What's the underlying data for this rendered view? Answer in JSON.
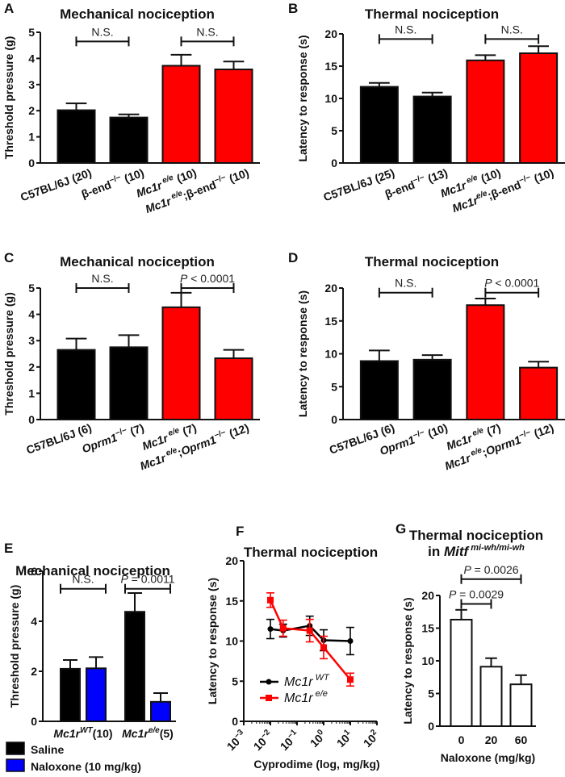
{
  "figure": {
    "colors": {
      "black": "#000000",
      "red": "#ff0000",
      "blue": "#0000ff",
      "white": "#ffffff",
      "axis": "#111111"
    }
  },
  "chart_data": [
    {
      "id": "A",
      "letter": "A",
      "type": "bar",
      "title": "Mechanical nociception",
      "ylabel": "Threshold pressure (g)",
      "xlabel": "",
      "ylim": [
        0,
        5
      ],
      "yticks": [
        0,
        1,
        2,
        3,
        4,
        5
      ],
      "categories": [
        {
          "parts": [
            {
              "t": "C57BL/6J (20)"
            }
          ]
        },
        {
          "parts": [
            {
              "t": "β-end"
            },
            {
              "t": "−/−",
              "sup": true
            },
            {
              "t": " (10)"
            }
          ]
        },
        {
          "parts": [
            {
              "t": "Mc1r",
              "it": true
            },
            {
              "t": " e/e",
              "sup": true,
              "it": true
            },
            {
              "t": " (10)"
            }
          ]
        },
        {
          "parts": [
            {
              "t": "Mc1r",
              "it": true
            },
            {
              "t": " e/e",
              "sup": true,
              "it": true
            },
            {
              "t": ";β-end"
            },
            {
              "t": "−/−",
              "sup": true
            },
            {
              "t": " (10)"
            }
          ]
        }
      ],
      "values": [
        2.02,
        1.74,
        3.72,
        3.58
      ],
      "errors": [
        0.26,
        0.12,
        0.42,
        0.3
      ],
      "colors": [
        "black",
        "black",
        "red",
        "red"
      ],
      "brackets": [
        {
          "from": 0,
          "to": 1,
          "y": 4.65,
          "label": "N.S."
        },
        {
          "from": 2,
          "to": 3,
          "y": 4.65,
          "label": "N.S."
        }
      ]
    },
    {
      "id": "B",
      "letter": "B",
      "type": "bar",
      "title": "Thermal nociception",
      "ylabel": "Latency to response (s)",
      "xlabel": "",
      "ylim": [
        0,
        20
      ],
      "yticks": [
        0,
        5,
        10,
        15,
        20
      ],
      "categories": [
        {
          "parts": [
            {
              "t": "C57BL/6J (25)"
            }
          ]
        },
        {
          "parts": [
            {
              "t": "β-end"
            },
            {
              "t": "−/−",
              "sup": true
            },
            {
              "t": " (13)"
            }
          ]
        },
        {
          "parts": [
            {
              "t": "Mc1r",
              "it": true
            },
            {
              "t": " e/e",
              "sup": true,
              "it": true
            },
            {
              "t": " (10)"
            }
          ]
        },
        {
          "parts": [
            {
              "t": "Mc1r",
              "it": true
            },
            {
              "t": "e/e",
              "sup": true,
              "it": true
            },
            {
              "t": ";β-end"
            },
            {
              "t": "−/−",
              "sup": true
            },
            {
              "t": " (10)"
            }
          ]
        }
      ],
      "values": [
        11.8,
        10.3,
        15.9,
        17.0
      ],
      "errors": [
        0.6,
        0.6,
        0.8,
        1.1
      ],
      "colors": [
        "black",
        "black",
        "red",
        "red"
      ],
      "brackets": [
        {
          "from": 0,
          "to": 1,
          "y": 19.2,
          "label": "N.S."
        },
        {
          "from": 2,
          "to": 3,
          "y": 19.2,
          "label": "N.S."
        }
      ]
    },
    {
      "id": "C",
      "letter": "C",
      "type": "bar",
      "title": "Mechanical nociception",
      "ylabel": "Threshold pressure (g)",
      "xlabel": "",
      "ylim": [
        0,
        5
      ],
      "yticks": [
        0,
        1,
        2,
        3,
        4,
        5
      ],
      "categories": [
        {
          "parts": [
            {
              "t": "C57BL/6J (6)"
            }
          ]
        },
        {
          "parts": [
            {
              "t": "Oprm1",
              "it": true
            },
            {
              "t": "−/−",
              "sup": true
            },
            {
              "t": "  (7)"
            }
          ]
        },
        {
          "parts": [
            {
              "t": "Mc1r",
              "it": true
            },
            {
              "t": " e/e",
              "sup": true,
              "it": true
            },
            {
              "t": " (7)"
            }
          ]
        },
        {
          "parts": [
            {
              "t": "Mc1r",
              "it": true
            },
            {
              "t": " e/e",
              "sup": true,
              "it": true
            },
            {
              "t": ";"
            },
            {
              "t": "Oprm1",
              "it": true
            },
            {
              "t": "−/−",
              "sup": true
            },
            {
              "t": "  (12)"
            }
          ]
        }
      ],
      "values": [
        2.65,
        2.75,
        4.27,
        2.33
      ],
      "errors": [
        0.43,
        0.46,
        0.55,
        0.32
      ],
      "colors": [
        "black",
        "black",
        "red",
        "red"
      ],
      "brackets": [
        {
          "from": 0,
          "to": 1,
          "y": 5.0,
          "label": "N.S."
        },
        {
          "from": 2,
          "to": 3,
          "y": 5.0,
          "label": "P < 0.0001",
          "italic_prefix": "P"
        }
      ]
    },
    {
      "id": "D",
      "letter": "D",
      "type": "bar",
      "title": "Thermal nociception",
      "ylabel": "Latency to response (s)",
      "xlabel": "",
      "ylim": [
        0,
        20
      ],
      "yticks": [
        0,
        5,
        10,
        15,
        20
      ],
      "categories": [
        {
          "parts": [
            {
              "t": "C57BL/6J (6)"
            }
          ]
        },
        {
          "parts": [
            {
              "t": "Oprm1",
              "it": true
            },
            {
              "t": "−/−",
              "sup": true
            },
            {
              "t": "  (10)"
            }
          ]
        },
        {
          "parts": [
            {
              "t": "Mc1r",
              "it": true
            },
            {
              "t": " e/e",
              "sup": true,
              "it": true
            },
            {
              "t": " (7)"
            }
          ]
        },
        {
          "parts": [
            {
              "t": "Mc1r",
              "it": true
            },
            {
              "t": " e/e",
              "sup": true,
              "it": true
            },
            {
              "t": ";"
            },
            {
              "t": "Oprm1",
              "it": true
            },
            {
              "t": "−/−",
              "sup": true
            },
            {
              "t": "  (12)"
            }
          ]
        }
      ],
      "values": [
        8.9,
        9.1,
        17.4,
        7.9
      ],
      "errors": [
        1.6,
        0.7,
        1.0,
        0.9
      ],
      "colors": [
        "black",
        "black",
        "red",
        "red"
      ],
      "brackets": [
        {
          "from": 0,
          "to": 1,
          "y": 19.3,
          "label": "N.S."
        },
        {
          "from": 2,
          "to": 3,
          "y": 19.3,
          "label": "P < 0.0001",
          "italic_prefix": "P"
        }
      ]
    },
    {
      "id": "E",
      "letter": "E",
      "type": "bar",
      "title": "Mechanical nociception",
      "ylabel": "Threshold pressure (g)",
      "xlabel": "",
      "ylim": [
        0,
        6
      ],
      "yticks": [
        0,
        2,
        4,
        6
      ],
      "groups": [
        {
          "parts": [
            {
              "t": "Mc1r",
              "it": true
            },
            {
              "t": "WT",
              "sup": true,
              "it": true
            },
            {
              "t": "(10)"
            }
          ]
        },
        {
          "parts": [
            {
              "t": "Mc1r",
              "it": true
            },
            {
              "t": "e/e",
              "sup": true,
              "it": true
            },
            {
              "t": "(5)"
            }
          ]
        }
      ],
      "series": [
        {
          "name": "Saline",
          "color": "black",
          "values": [
            2.1,
            4.38
          ],
          "errors": [
            0.35,
            0.75
          ]
        },
        {
          "name": "Naloxone (10 mg/kg)",
          "color": "blue",
          "values": [
            2.12,
            0.78
          ],
          "errors": [
            0.45,
            0.35
          ]
        }
      ],
      "legend": [
        "Saline",
        "Naloxone (10 mg/kg)"
      ],
      "legend_position": "bottom",
      "brackets": [
        {
          "group": 0,
          "y": 5.3,
          "label": "N.S."
        },
        {
          "group": 1,
          "y": 5.3,
          "label": "P = 0.0011",
          "italic_prefix": "P"
        }
      ]
    },
    {
      "id": "F",
      "letter": "F",
      "type": "line",
      "title": "Thermal nociception",
      "ylabel": "Latency to response (s)",
      "xlabel": "Cyprodime (log, mg/kg)",
      "xscale": "log",
      "xlim_exp": [
        -3,
        2
      ],
      "xticks_exp": [
        -3,
        -2,
        -1,
        0,
        1,
        2
      ],
      "ylim": [
        0,
        20
      ],
      "yticks": [
        0,
        5,
        10,
        15,
        20
      ],
      "series": [
        {
          "name": "Mc1r WT",
          "label_base": "Mc1r",
          "label_sup": "WT",
          "color": "black",
          "marker": "circle",
          "x": [
            0.01,
            0.03,
            0.3,
            1,
            10
          ],
          "y": [
            11.5,
            11.3,
            11.9,
            10.1,
            10.0
          ],
          "errors": [
            1.2,
            0.8,
            1.2,
            1.3,
            1.7
          ]
        },
        {
          "name": "Mc1r e/e",
          "label_base": "Mc1r",
          "label_sup": "e/e",
          "color": "red",
          "marker": "square",
          "x": [
            0.01,
            0.03,
            0.3,
            1,
            10
          ],
          "y": [
            15.1,
            11.6,
            11.3,
            9.2,
            5.2
          ],
          "errors": [
            0.9,
            1.0,
            1.4,
            1.4,
            0.8
          ]
        }
      ],
      "legend_position": "bottom-left"
    },
    {
      "id": "G",
      "letter": "G",
      "type": "bar",
      "title": "Thermal nociception",
      "title2_prefix": "in ",
      "title2_gene": "Mitf",
      "title2_sup": "mi-wh/mi-wh",
      "ylabel": "Latency to response (s)",
      "xlabel": "Naloxone (mg/kg)",
      "ylim": [
        0,
        20
      ],
      "yticks": [
        0,
        5,
        10,
        15,
        20
      ],
      "categories": [
        {
          "parts": [
            {
              "t": "0"
            }
          ]
        },
        {
          "parts": [
            {
              "t": "20"
            }
          ]
        },
        {
          "parts": [
            {
              "t": "60"
            }
          ]
        }
      ],
      "values": [
        16.3,
        9.1,
        6.4
      ],
      "errors": [
        1.5,
        1.3,
        1.4
      ],
      "colors": [
        "white",
        "white",
        "white"
      ],
      "brackets": [
        {
          "from": 0,
          "to": 2,
          "y": 22.5,
          "label": "P = 0.0026",
          "italic_prefix": "P"
        },
        {
          "from": 0,
          "to": 1,
          "y": 18.7,
          "label": "P = 0.0029",
          "italic_prefix": "P"
        }
      ]
    }
  ]
}
